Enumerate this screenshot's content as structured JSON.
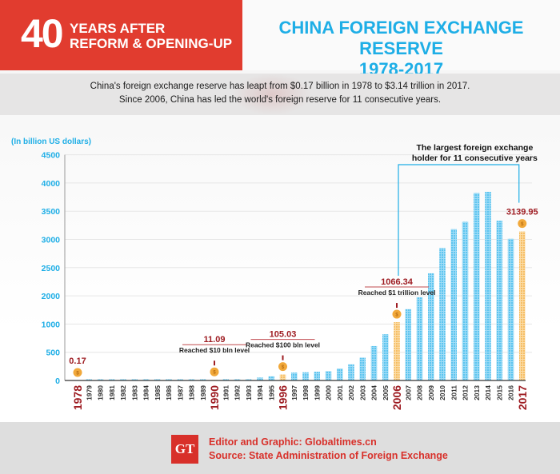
{
  "header": {
    "number": "40",
    "subtitle_line1": "YEARS AFTER",
    "subtitle_line2": "REFORM & OPENING-UP",
    "title_line1": "CHINA FOREIGN EXCHANGE RESERVE",
    "title_line2": "1978-2017"
  },
  "intro": {
    "line1": "China's foreign exchange reserve has leapt from $0.17 billion in 1978 to $3.14 trillion in 2017.",
    "line2": "Since 2006, China has led the world's foreign reserve for 11 consecutive years."
  },
  "footer": {
    "logo": "GT",
    "editor": "Editor and Graphic: Globaltimes.cn",
    "source": "Source: State Administration of Foreign Exchange"
  },
  "colors": {
    "red": "#e13c2f",
    "blue": "#1eaee6",
    "bar_blue": "#6cccf2",
    "bar_orange": "#f8c77a",
    "label_red": "#9e1c22",
    "coin": "#f1a83a"
  },
  "chart_data": {
    "type": "bar",
    "title": "CHINA FOREIGN EXCHANGE RESERVE 1978-2017",
    "ylabel": "(In billion US dollars)",
    "xlabel": "",
    "ylim": [
      0,
      4500
    ],
    "yticks": [
      0,
      500,
      1000,
      2000,
      2500,
      3000,
      3500,
      4000,
      4500
    ],
    "grid": true,
    "categories": [
      "1978",
      "1979",
      "1980",
      "1981",
      "1982",
      "1983",
      "1984",
      "1985",
      "1986",
      "1987",
      "1988",
      "1989",
      "1990",
      "1991",
      "1992",
      "1993",
      "1994",
      "1995",
      "1996",
      "1997",
      "1998",
      "1999",
      "2000",
      "2001",
      "2002",
      "2003",
      "2004",
      "2005",
      "2006",
      "2007",
      "2008",
      "2009",
      "2010",
      "2011",
      "2012",
      "2013",
      "2014",
      "2015",
      "2016",
      "2017"
    ],
    "values": [
      0.17,
      0.84,
      -1.3,
      2.71,
      6.99,
      8.9,
      8.22,
      2.64,
      2.07,
      2.92,
      3.37,
      5.55,
      11.09,
      21.71,
      19.44,
      21.2,
      51.62,
      73.6,
      105.03,
      139.89,
      144.96,
      154.68,
      165.57,
      212.17,
      286.41,
      403.25,
      609.93,
      818.87,
      1066.34,
      1528.25,
      1946.03,
      2399.15,
      2847.34,
      3181.15,
      3311.59,
      3821.32,
      3843.02,
      3330.36,
      3010.52,
      3139.95
    ],
    "highlighted": [
      "1978",
      "1990",
      "1996",
      "2006",
      "2017"
    ],
    "annotations": [
      {
        "year": "1978",
        "value": "0.17",
        "text": ""
      },
      {
        "year": "1990",
        "value": "11.09",
        "text": "Reached $10 bln level"
      },
      {
        "year": "1996",
        "value": "105.03",
        "text": "Reached $100 bln level"
      },
      {
        "year": "2006",
        "value": "1066.34",
        "text": "Reached $1 trillion level"
      },
      {
        "year": "2017",
        "value": "3139.95",
        "text": ""
      }
    ],
    "bracket": {
      "from": "2006",
      "to": "2017",
      "text_line1": "The largest foreign exchange",
      "text_line2": "holder for 11 consecutive years"
    }
  }
}
